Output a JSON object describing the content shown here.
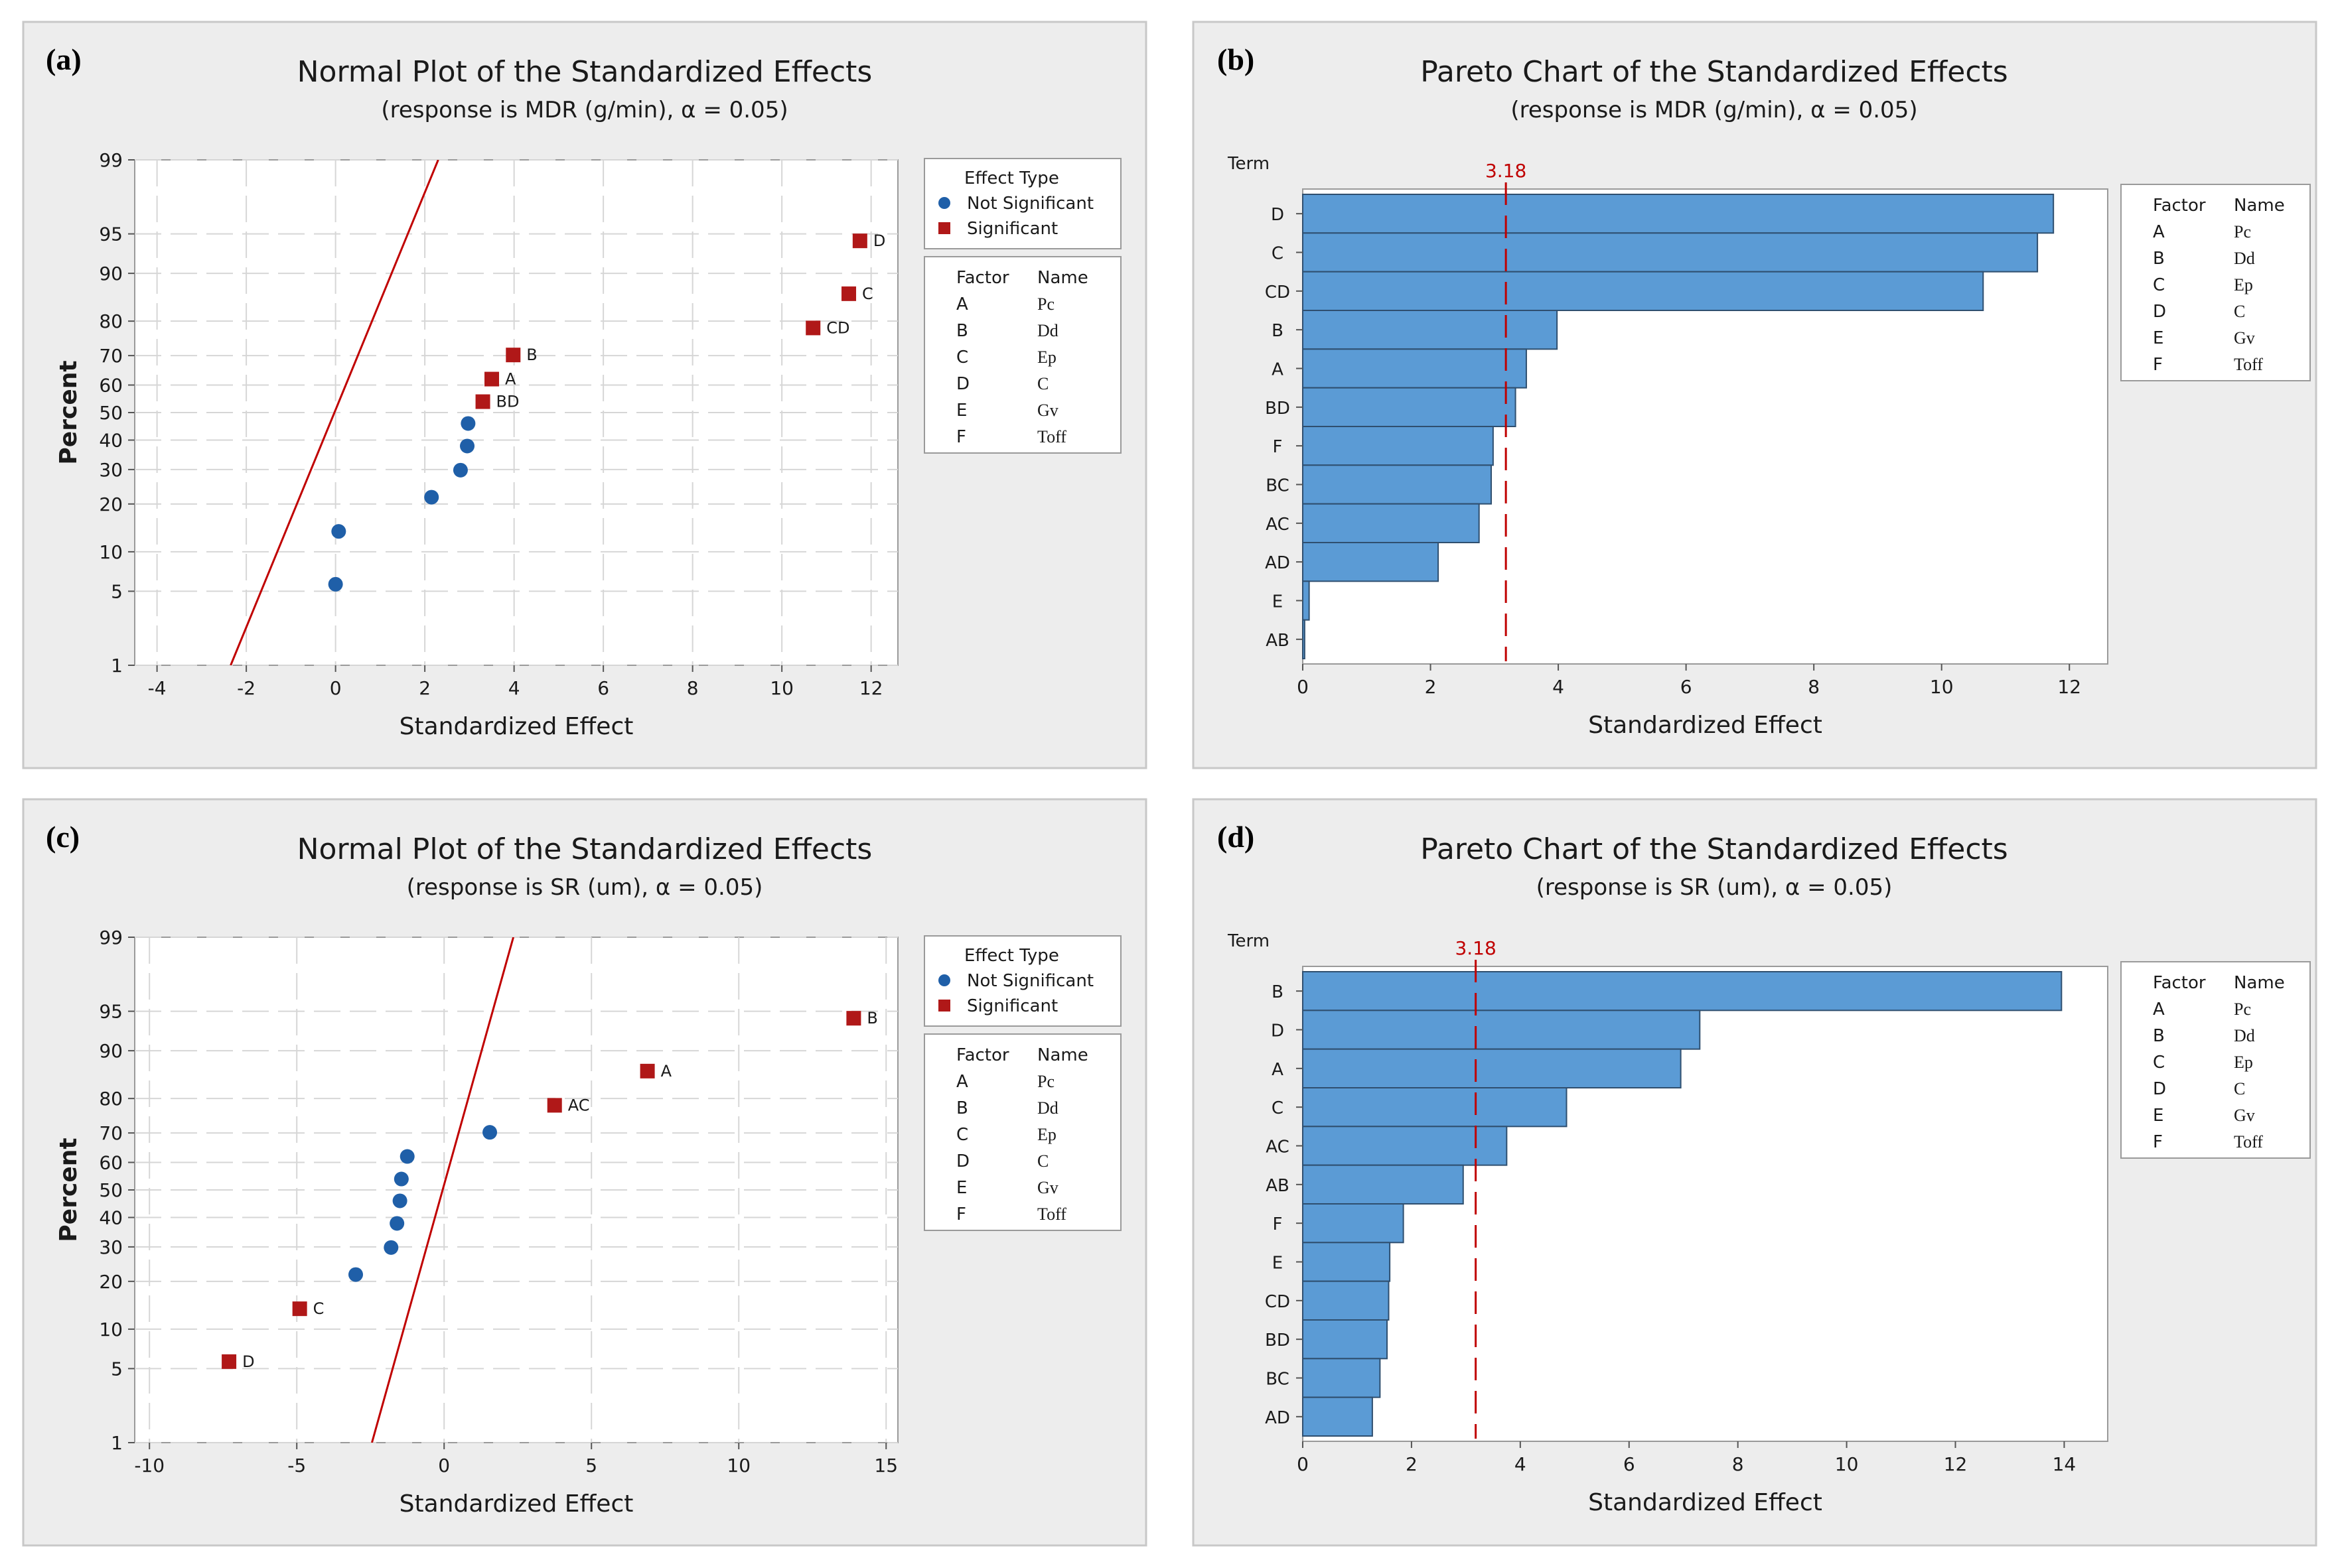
{
  "colors": {
    "panel_bg": "#ededed",
    "panel_border": "#c8c8c8",
    "plot_bg": "#ffffff",
    "grid": "#d6d6d6",
    "bar_fill": "#5b9bd5",
    "bar_stroke": "#2f4f6f",
    "significant": "#b01818",
    "not_significant": "#1f5fa8",
    "line": "#c00000"
  },
  "chart_data": [
    {
      "type": "scatter",
      "panel_label": "(a)",
      "title": "Normal Plot of the Standardized Effects",
      "subtitle": "(response is MDR (g/min), α = 0.05)",
      "xlabel": "Standardized Effect",
      "ylabel": "Percent",
      "xlim": [
        -4.5,
        12.6
      ],
      "xticks": [
        -4,
        -2,
        0,
        2,
        4,
        6,
        8,
        10,
        12
      ],
      "xtick_labels": [
        "-4",
        "-2",
        "0",
        "2",
        "4",
        "6",
        "8",
        "10",
        "12"
      ],
      "yticks": [
        1,
        5,
        10,
        20,
        30,
        40,
        50,
        60,
        70,
        80,
        90,
        95,
        99
      ],
      "ytick_labels": [
        "1",
        "5",
        "10",
        "20",
        "30",
        "40",
        "50",
        "60",
        "70",
        "80",
        "90",
        "95",
        "99"
      ],
      "normal_line": {
        "x_at_1": -2.35,
        "x_at_99": 2.3
      },
      "points": [
        {
          "x": 0.0,
          "p": 5.7,
          "sig": false,
          "label": ""
        },
        {
          "x": 0.07,
          "p": 13.7,
          "sig": false,
          "label": ""
        },
        {
          "x": 2.15,
          "p": 21.8,
          "sig": false,
          "label": ""
        },
        {
          "x": 2.8,
          "p": 29.8,
          "sig": false,
          "label": ""
        },
        {
          "x": 2.95,
          "p": 37.9,
          "sig": false,
          "label": ""
        },
        {
          "x": 2.97,
          "p": 46.0,
          "sig": false,
          "label": ""
        },
        {
          "x": 3.3,
          "p": 54.0,
          "sig": true,
          "label": "BD"
        },
        {
          "x": 3.5,
          "p": 62.1,
          "sig": true,
          "label": "A"
        },
        {
          "x": 3.98,
          "p": 70.2,
          "sig": true,
          "label": "B"
        },
        {
          "x": 10.7,
          "p": 78.2,
          "sig": true,
          "label": "CD"
        },
        {
          "x": 11.5,
          "p": 86.3,
          "sig": true,
          "label": "C"
        },
        {
          "x": 11.75,
          "p": 94.3,
          "sig": true,
          "label": "D"
        }
      ],
      "legend": {
        "title": "Effect Type",
        "items": [
          {
            "label": "Not Significant",
            "sig": false
          },
          {
            "label": "Significant",
            "sig": true
          }
        ]
      },
      "factor_table": {
        "header": [
          "Factor",
          "Name"
        ],
        "rows": [
          [
            "A",
            "Pc"
          ],
          [
            "B",
            "Dd"
          ],
          [
            "C",
            "Ep"
          ],
          [
            "D",
            "C"
          ],
          [
            "E",
            "Gv"
          ],
          [
            "F",
            "Toff"
          ]
        ]
      }
    },
    {
      "type": "bar",
      "orientation": "horizontal",
      "panel_label": "(b)",
      "title": "Pareto Chart of the Standardized Effects",
      "subtitle": "(response is MDR (g/min), α = 0.05)",
      "xlabel": "Standardized Effect",
      "ylabel": "Term",
      "xlim": [
        0,
        12.6
      ],
      "xticks": [
        0,
        2,
        4,
        6,
        8,
        10,
        12
      ],
      "xtick_labels": [
        "0",
        "2",
        "4",
        "6",
        "8",
        "10",
        "12"
      ],
      "reference_value": 3.18,
      "reference_label": "3.18",
      "categories": [
        "D",
        "C",
        "CD",
        "B",
        "A",
        "BD",
        "F",
        "BC",
        "AC",
        "AD",
        "E",
        "AB"
      ],
      "values": [
        11.75,
        11.5,
        10.65,
        3.98,
        3.5,
        3.33,
        2.98,
        2.95,
        2.76,
        2.12,
        0.1,
        0.03
      ],
      "factor_table": {
        "header": [
          "Factor",
          "Name"
        ],
        "rows": [
          [
            "A",
            "Pc"
          ],
          [
            "B",
            "Dd"
          ],
          [
            "C",
            "Ep"
          ],
          [
            "D",
            "C"
          ],
          [
            "E",
            "Gv"
          ],
          [
            "F",
            "Toff"
          ]
        ]
      }
    },
    {
      "type": "scatter",
      "panel_label": "(c)",
      "title": "Normal Plot of the Standardized Effects",
      "subtitle": "(response is SR (um), α = 0.05)",
      "xlabel": "Standardized Effect",
      "ylabel": "Percent",
      "xlim": [
        -10.5,
        15.4
      ],
      "xticks": [
        -10,
        -5,
        0,
        5,
        10,
        15
      ],
      "xtick_labels": [
        "-10",
        "-5",
        "0",
        "5",
        "10",
        "15"
      ],
      "yticks": [
        1,
        5,
        10,
        20,
        30,
        40,
        50,
        60,
        70,
        80,
        90,
        95,
        99
      ],
      "ytick_labels": [
        "1",
        "5",
        "10",
        "20",
        "30",
        "40",
        "50",
        "60",
        "70",
        "80",
        "90",
        "95",
        "99"
      ],
      "normal_line": {
        "x_at_1": -2.45,
        "x_at_99": 2.35
      },
      "points": [
        {
          "x": -7.3,
          "p": 5.7,
          "sig": true,
          "label": "D"
        },
        {
          "x": -4.9,
          "p": 13.7,
          "sig": true,
          "label": "C"
        },
        {
          "x": -3.0,
          "p": 21.8,
          "sig": false,
          "label": ""
        },
        {
          "x": -1.8,
          "p": 29.8,
          "sig": false,
          "label": ""
        },
        {
          "x": -1.6,
          "p": 37.9,
          "sig": false,
          "label": ""
        },
        {
          "x": -1.5,
          "p": 46.0,
          "sig": false,
          "label": ""
        },
        {
          "x": -1.45,
          "p": 54.0,
          "sig": false,
          "label": ""
        },
        {
          "x": -1.25,
          "p": 62.1,
          "sig": false,
          "label": ""
        },
        {
          "x": 1.55,
          "p": 70.2,
          "sig": false,
          "label": ""
        },
        {
          "x": 3.75,
          "p": 78.2,
          "sig": true,
          "label": "AC"
        },
        {
          "x": 6.9,
          "p": 86.3,
          "sig": true,
          "label": "A"
        },
        {
          "x": 13.9,
          "p": 94.3,
          "sig": true,
          "label": "B"
        }
      ],
      "legend": {
        "title": "Effect Type",
        "items": [
          {
            "label": "Not Significant",
            "sig": false
          },
          {
            "label": "Significant",
            "sig": true
          }
        ]
      },
      "factor_table": {
        "header": [
          "Factor",
          "Name"
        ],
        "rows": [
          [
            "A",
            "Pc"
          ],
          [
            "B",
            "Dd"
          ],
          [
            "C",
            "Ep"
          ],
          [
            "D",
            "C"
          ],
          [
            "E",
            "Gv"
          ],
          [
            "F",
            "Toff"
          ]
        ]
      }
    },
    {
      "type": "bar",
      "orientation": "horizontal",
      "panel_label": "(d)",
      "title": "Pareto Chart of the Standardized Effects",
      "subtitle": "(response is SR (um), α = 0.05)",
      "xlabel": "Standardized Effect",
      "ylabel": "Term",
      "xlim": [
        0,
        14.8
      ],
      "xticks": [
        0,
        2,
        4,
        6,
        8,
        10,
        12,
        14
      ],
      "xtick_labels": [
        "0",
        "2",
        "4",
        "6",
        "8",
        "10",
        "12",
        "14"
      ],
      "reference_value": 3.18,
      "reference_label": "3.18",
      "categories": [
        "B",
        "D",
        "A",
        "C",
        "AC",
        "AB",
        "F",
        "E",
        "CD",
        "BD",
        "BC",
        "AD"
      ],
      "values": [
        13.95,
        7.3,
        6.95,
        4.85,
        3.75,
        2.95,
        1.85,
        1.6,
        1.58,
        1.55,
        1.42,
        1.28
      ],
      "factor_table": {
        "header": [
          "Factor",
          "Name"
        ],
        "rows": [
          [
            "A",
            "Pc"
          ],
          [
            "B",
            "Dd"
          ],
          [
            "C",
            "Ep"
          ],
          [
            "D",
            "C"
          ],
          [
            "E",
            "Gv"
          ],
          [
            "F",
            "Toff"
          ]
        ]
      }
    }
  ]
}
